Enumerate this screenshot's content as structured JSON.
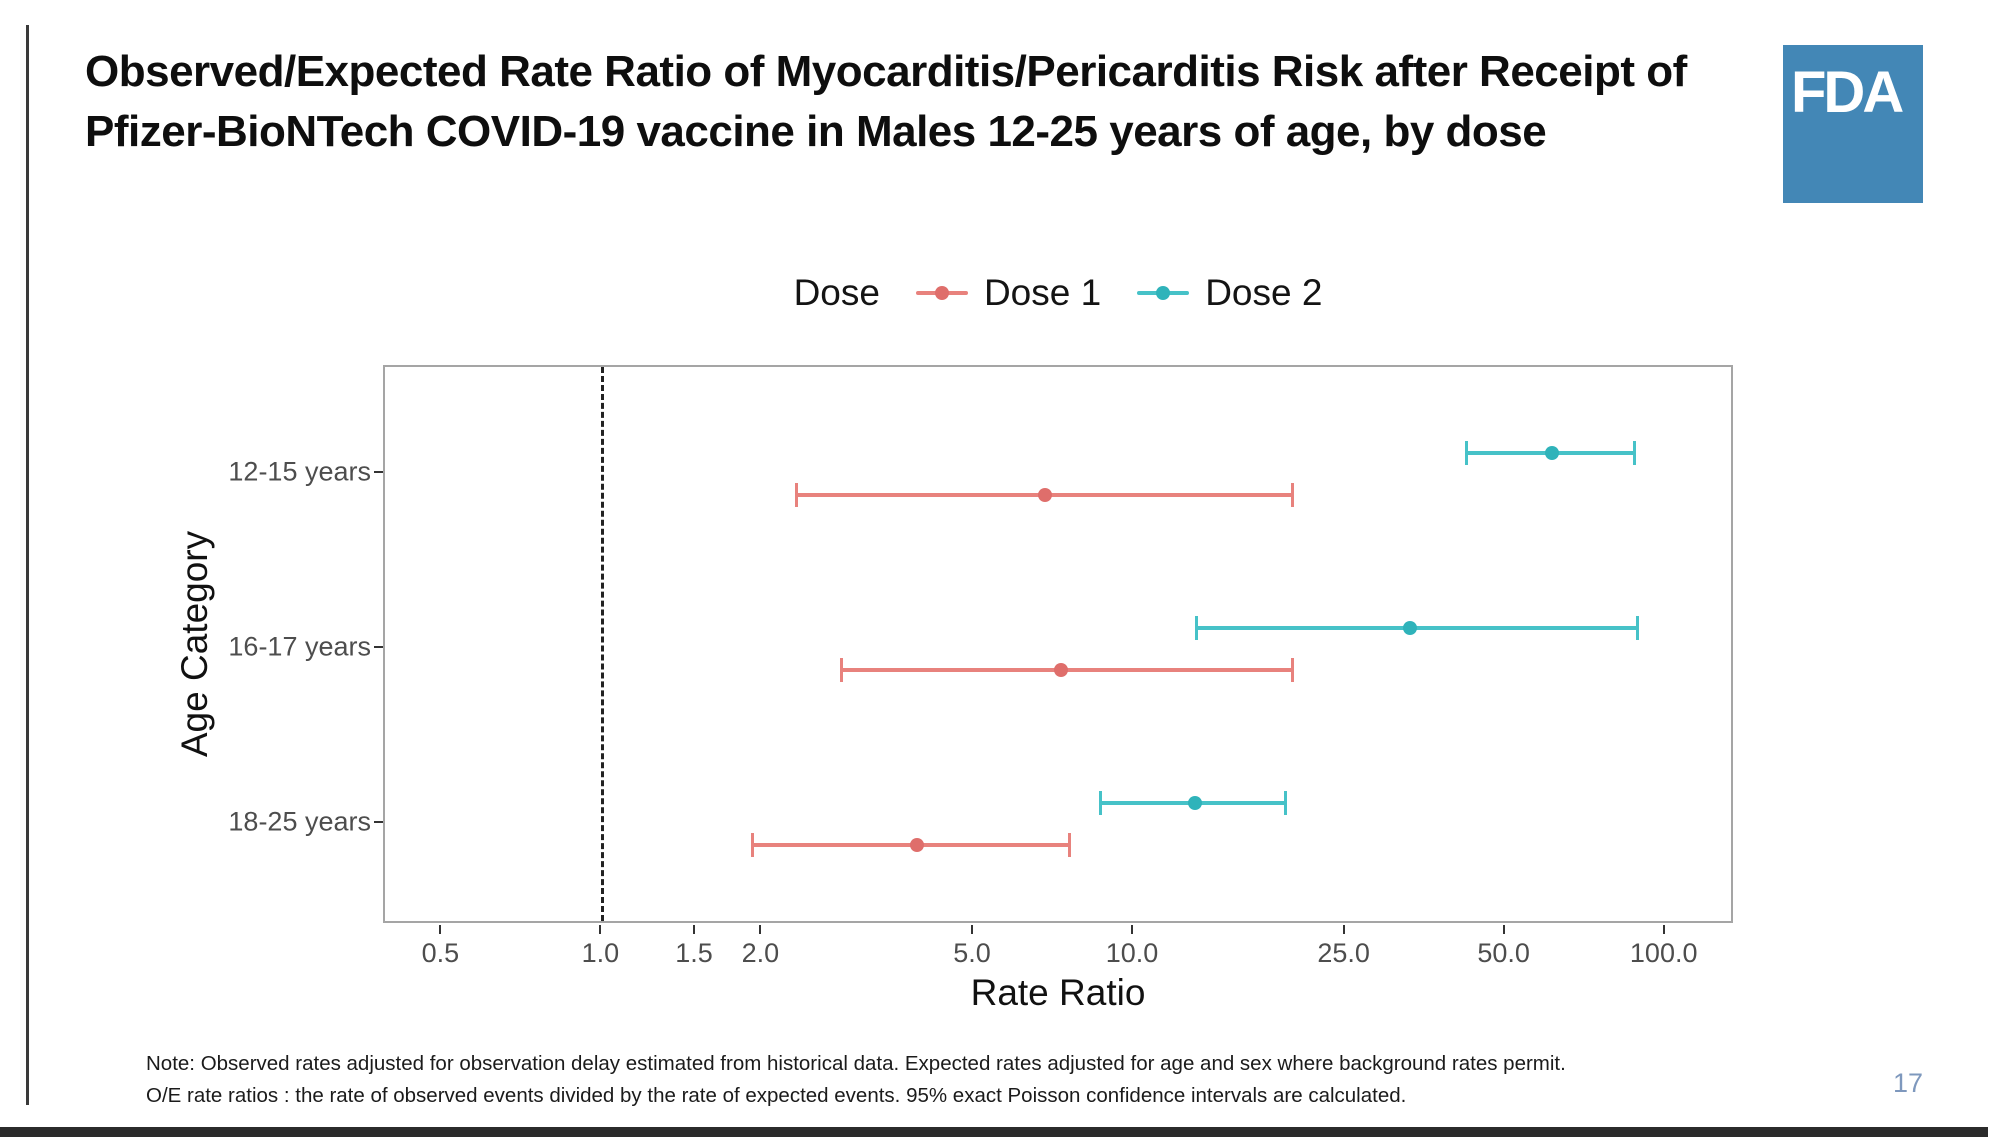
{
  "header": {
    "title": "Observed/Expected Rate Ratio of Myocarditis/Pericarditis Risk after Receipt of Pfizer-BioNTech COVID-19 vaccine in Males 12-25 years of age, by dose",
    "logo_text": "FDA"
  },
  "chart_data": {
    "type": "scatter",
    "subtype": "forest-plot-errorbars",
    "xlabel": "Rate Ratio",
    "ylabel": "Age Category",
    "x_scale": "log10",
    "x_domain": [
      0.39,
      135
    ],
    "x_ticks": [
      0.5,
      1.0,
      1.5,
      2.0,
      5.0,
      10.0,
      25.0,
      50.0,
      100.0
    ],
    "x_tick_labels": [
      "0.5",
      "1.0",
      "1.5",
      "2.0",
      "5.0",
      "10.0",
      "25.0",
      "50.0",
      "100.0"
    ],
    "reference_line_x": 1.0,
    "grid": false,
    "categories": [
      "12-15 years",
      "16-17 years",
      "18-25 years"
    ],
    "legend": {
      "title": "Dose",
      "position": "top"
    },
    "series": [
      {
        "name": "Dose 1",
        "color": "#e8827d",
        "point_color": "#df6e6b",
        "values": [
          {
            "category": "12-15 years",
            "estimate": 6.8,
            "ci_low": 2.3,
            "ci_high": 20.0
          },
          {
            "category": "16-17 years",
            "estimate": 7.3,
            "ci_low": 2.8,
            "ci_high": 20.0
          },
          {
            "category": "18-25 years",
            "estimate": 3.9,
            "ci_low": 1.9,
            "ci_high": 7.6
          }
        ]
      },
      {
        "name": "Dose 2",
        "color": "#46c2c8",
        "point_color": "#2fb3ba",
        "values": [
          {
            "category": "12-15 years",
            "estimate": 61.0,
            "ci_low": 42.0,
            "ci_high": 88.0
          },
          {
            "category": "16-17 years",
            "estimate": 33.0,
            "ci_low": 13.0,
            "ci_high": 89.0
          },
          {
            "category": "18-25 years",
            "estimate": 13.0,
            "ci_low": 8.6,
            "ci_high": 19.4
          }
        ]
      }
    ]
  },
  "footer": {
    "note_line1": "Note: Observed rates adjusted for observation delay estimated from historical data. Expected rates adjusted for age and sex where background rates permit.",
    "note_line2": "O/E rate ratios : the rate of observed events divided by the rate of expected events.  95% exact Poisson confidence intervals are calculated.",
    "page_number": "17"
  },
  "colors": {
    "fda_blue": "#4387b6",
    "page_number_blue": "#7e98bd",
    "dose1": "#e8827d",
    "dose2": "#46c2c8"
  }
}
